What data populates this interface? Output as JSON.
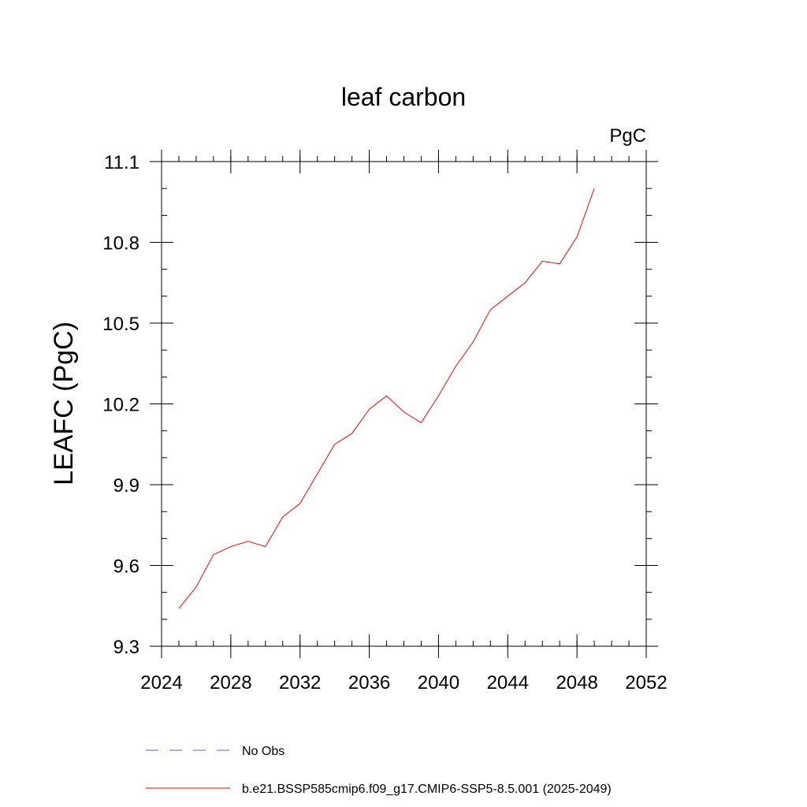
{
  "chart_data": {
    "type": "line",
    "title": "leaf carbon",
    "units_label": "PgC",
    "ylabel": "LEAFC  (PgC)",
    "xlabel": "",
    "xlim": [
      2024,
      2052
    ],
    "ylim": [
      9.3,
      11.1
    ],
    "x_ticks": [
      2024,
      2028,
      2032,
      2036,
      2040,
      2044,
      2048,
      2052
    ],
    "x_tick_labels": [
      "2024",
      "2028",
      "2032",
      "2036",
      "2040",
      "2044",
      "2048",
      "2052"
    ],
    "y_ticks": [
      9.3,
      9.6,
      9.9,
      10.2,
      10.5,
      10.8,
      11.1
    ],
    "y_tick_labels": [
      "9.3",
      "9.6",
      "9.9",
      "10.2",
      "10.5",
      "10.8",
      "11.1"
    ],
    "grid": false,
    "legend_position": "bottom",
    "series": [
      {
        "name": "b.e21.BSSP585cmip6.f09_g17.CMIP6-SSP5-8.5.001 (2025-2049)",
        "color": "#ff0000",
        "style": "solid",
        "x": [
          2025,
          2026,
          2027,
          2028,
          2029,
          2030,
          2031,
          2032,
          2033,
          2034,
          2035,
          2036,
          2037,
          2038,
          2039,
          2040,
          2041,
          2042,
          2043,
          2044,
          2045,
          2046,
          2047,
          2048,
          2049
        ],
        "y": [
          9.44,
          9.52,
          9.64,
          9.67,
          9.69,
          9.67,
          9.78,
          9.83,
          9.94,
          10.05,
          10.09,
          10.18,
          10.23,
          10.17,
          10.13,
          10.23,
          10.34,
          10.43,
          10.55,
          10.6,
          10.65,
          10.73,
          10.72,
          10.82,
          11.0
        ]
      },
      {
        "name": "No Obs",
        "color": "#6a5acd",
        "style": "dashed",
        "x": [],
        "y": []
      }
    ]
  }
}
